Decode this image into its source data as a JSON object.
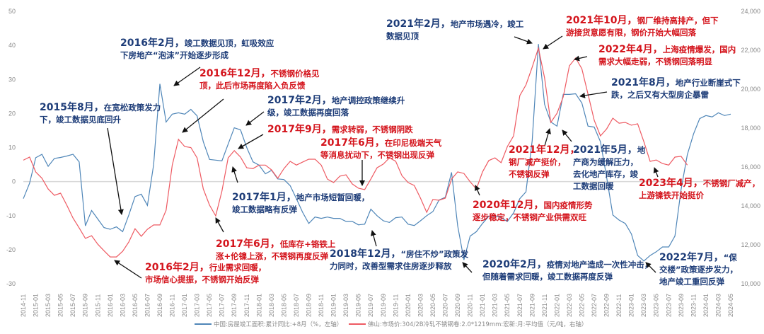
{
  "chart_data": {
    "type": "line",
    "x": [
      "2014-11",
      "2014-12",
      "2015-01",
      "2015-02",
      "2015-03",
      "2015-04",
      "2015-05",
      "2015-06",
      "2015-07",
      "2015-08",
      "2015-09",
      "2015-10",
      "2015-11",
      "2015-12",
      "2016-01",
      "2016-02",
      "2016-03",
      "2016-04",
      "2016-05",
      "2016-06",
      "2016-07",
      "2016-08",
      "2016-09",
      "2016-10",
      "2016-11",
      "2016-12",
      "2017-01",
      "2017-02",
      "2017-03",
      "2017-04",
      "2017-05",
      "2017-06",
      "2017-07",
      "2017-08",
      "2017-09",
      "2017-10",
      "2017-11",
      "2017-12",
      "2018-01",
      "2018-02",
      "2018-03",
      "2018-04",
      "2018-05",
      "2018-06",
      "2018-07",
      "2018-08",
      "2018-09",
      "2018-10",
      "2018-11",
      "2018-12",
      "2019-01",
      "2019-02",
      "2019-03",
      "2019-04",
      "2019-05",
      "2019-06",
      "2019-07",
      "2019-08",
      "2019-09",
      "2019-10",
      "2019-11",
      "2019-12",
      "2020-01",
      "2020-02",
      "2020-03",
      "2020-04",
      "2020-05",
      "2020-06",
      "2020-07",
      "2020-08",
      "2020-09",
      "2020-10",
      "2020-11",
      "2020-12",
      "2021-01",
      "2021-02",
      "2021-03",
      "2021-04",
      "2021-05",
      "2021-06",
      "2021-07",
      "2021-08",
      "2021-09",
      "2021-10",
      "2021-11",
      "2021-12",
      "2022-01",
      "2022-02",
      "2022-03",
      "2022-04",
      "2022-05",
      "2022-06",
      "2022-07",
      "2022-08",
      "2022-09",
      "2022-10",
      "2022-11",
      "2022-12",
      "2023-01",
      "2023-02",
      "2023-03",
      "2023-04",
      "2023-05",
      "2023-06",
      "2023-07",
      "2023-08",
      "2023-09",
      "2023-10",
      "2023-11",
      "2023-12",
      "2024-01",
      "2024-02",
      "2024-03",
      "2024-04",
      "2024-05"
    ],
    "left_axis": {
      "ylim": [
        -30,
        50
      ],
      "ticks": [
        "50",
        "40",
        "30",
        "20",
        "10",
        "0",
        "-10",
        "-20",
        "-30"
      ]
    },
    "right_axis": {
      "ylim": [
        10000,
        24000
      ],
      "ticks": [
        "24,000",
        "22,000",
        "20,000",
        "18,000",
        "16,000",
        "14,000",
        "12,000",
        "10,000"
      ]
    },
    "grid": false,
    "legend_position": "bottom",
    "series": [
      {
        "name": "中国:房屋竣工面积:累计同比:+8月（%，左轴）",
        "axis": "left",
        "color": "#4f86b8",
        "values": [
          -5,
          -0.5,
          7,
          8,
          4.5,
          6.8,
          7.1,
          7.5,
          8,
          5.8,
          -13,
          -8.5,
          -11,
          -13.5,
          -14,
          -13.3,
          -14.7,
          -9.8,
          -4.4,
          -3.7,
          -7,
          5,
          28.7,
          17.5,
          19.8,
          20.2,
          19.8,
          21.2,
          19.3,
          11.7,
          6.5,
          6.3,
          6.1,
          11,
          15.8,
          15.2,
          10,
          5.8,
          4.8,
          2.3,
          3.3,
          0.8,
          0.6,
          -1.2,
          -5,
          -9,
          -12.3,
          -10.4,
          -10.8,
          -10.4,
          -10.8,
          -10.8,
          -11.7,
          -11.7,
          -12.7,
          -12.5,
          -8.1,
          -10,
          -11.5,
          -12,
          -10.6,
          -10.4,
          -12.5,
          -12.9,
          -11.5,
          -10,
          -8.8,
          -5.4,
          -4.6,
          2.7,
          -13,
          -23,
          -16,
          -14.7,
          -12.3,
          -10.2,
          -10,
          -10.6,
          -11.7,
          -9.2,
          -5,
          -3,
          12,
          40.4,
          22.7,
          17.5,
          16.3,
          25.6,
          25.6,
          25.8,
          23.1,
          16.3,
          16,
          11.7,
          1.2,
          -9.8,
          -11.3,
          -12.3,
          -15.4,
          -21.7,
          -23.3,
          -21.7,
          -20.6,
          -19.2,
          -19.2,
          -16,
          -2.3,
          7.9,
          14,
          18.5,
          19.4,
          19,
          20.2,
          19.4,
          19.8
        ]
      },
      {
        "name": "佛山:市场价:304/2B冷轧不锈钢卷:2.0*1219mm:宏新:月:平均值（元/吨，右轴）",
        "axis": "right",
        "color": "#ee5a62",
        "values": [
          16350,
          16510,
          15745,
          15420,
          14870,
          14545,
          14655,
          14040,
          13380,
          12870,
          12330,
          12470,
          12030,
          11700,
          11380,
          11380,
          11670,
          12150,
          12830,
          12440,
          12800,
          13020,
          13020,
          13780,
          16100,
          17420,
          17050,
          17000,
          16470,
          14870,
          14040,
          13490,
          14760,
          16470,
          16840,
          16510,
          15960,
          15920,
          16100,
          16100,
          15850,
          15420,
          15920,
          16290,
          16100,
          16250,
          16400,
          16400,
          16100,
          15380,
          15200,
          15530,
          15600,
          15130,
          14910,
          14840,
          15380,
          15960,
          16150,
          16470,
          16300,
          15560,
          15200,
          15050,
          14400,
          13670,
          14330,
          14290,
          14400,
          15380,
          15750,
          15670,
          15240,
          14870,
          15750,
          16330,
          16470,
          16220,
          17050,
          17600,
          19670,
          20220,
          21130,
          22110,
          20580,
          18290,
          18760,
          19600,
          21200,
          21600,
          21050,
          19750,
          18400,
          17600,
          17960,
          18510,
          18250,
          18290,
          18150,
          18220,
          17300,
          16290,
          16360,
          16180,
          16100,
          16510,
          16550,
          16100,
          null,
          null,
          null,
          null,
          null,
          null,
          null
        ]
      }
    ],
    "annotations": [
      {
        "color": "blue",
        "date": "2016年2月，",
        "lines": [
          "竣工数据见顶，虹吸效应",
          "下房地产“泡沫”开始逐步形成"
        ]
      },
      {
        "color": "red",
        "date": "2016年12月，",
        "lines": [
          "不锈钢价格见",
          "顶，此后市场再度陷入负反馈"
        ]
      },
      {
        "color": "blue",
        "date": "2017年2月，",
        "lines": [
          "地产调控政策继续升",
          "级，竣工数据再度回落"
        ]
      },
      {
        "color": "blue",
        "date": "2015年8月，",
        "lines": [
          "在宽松政策发力",
          "下，竣工数据见底回升"
        ]
      },
      {
        "color": "red",
        "date": "2017年9月，",
        "lines": [
          "需求转弱，不锈钢阴跌"
        ]
      },
      {
        "color": "red",
        "date": "2017年6月，",
        "lines": [
          "在印尼极端天气",
          "等消息扰动下，不锈钢出现反弹"
        ]
      },
      {
        "color": "blue",
        "date": "2017年1月，",
        "lines": [
          "地产市场短暂回暖，",
          "竣工数据略有反弹"
        ]
      },
      {
        "color": "red",
        "date": "2017年6月，",
        "lines": [
          "低库存+铬铁上",
          "涨+伦镍上涨，不锈钢再度反弹"
        ]
      },
      {
        "color": "blue",
        "date": "2018年12月，",
        "lines": [
          "“房住不炒”政策发",
          "力同时，改善型需求住房逐步释放"
        ]
      },
      {
        "color": "red",
        "date": "2016年2月，",
        "lines": [
          "行业需求回暖，",
          "市场信心提振，不锈钢开始反弹"
        ]
      },
      {
        "color": "blue",
        "date": "2021年2月，",
        "lines": [
          "地产市场遇冷，竣工",
          "数据见顶"
        ]
      },
      {
        "color": "red",
        "date": "2021年10月，",
        "lines": [
          "钢厂维持高排产，但下",
          "游接货意愿有限，钢价开始大幅回落"
        ]
      },
      {
        "color": "red",
        "date": "2022年4月，",
        "lines": [
          "上海疫情爆发，国内",
          "需求大幅走弱，不锈钢回落明显"
        ]
      },
      {
        "color": "blue",
        "date": "2021年8月，",
        "lines": [
          "地产行业断崖式下",
          "跌，之后又有大型房企暴雷"
        ]
      },
      {
        "color": "red",
        "date": "2021年12月，",
        "lines": [
          "",
          "钢厂减产挺价，",
          "不锈钢反弹"
        ]
      },
      {
        "color": "blue",
        "date": "2021年5月，",
        "lines": [
          "地",
          "产商为缓解压力，",
          "去化地产库存，竣",
          "工数据回暖"
        ]
      },
      {
        "color": "red",
        "date": "2023年4月，",
        "lines": [
          "不锈钢厂减产，",
          "上游镍铁开始挺价"
        ]
      },
      {
        "color": "red",
        "date": "2020年12月，",
        "lines": [
          "国内疫情形势",
          "逐步稳定，不锈钢产业供需双旺"
        ]
      },
      {
        "color": "blue",
        "date": "2020年2月，",
        "lines": [
          "疫情对地产造成一次性冲击，",
          "但随着需求回暖，竣工数据再度反弹"
        ]
      },
      {
        "color": "blue",
        "date": "2022年7月，",
        "lines": [
          "“保",
          "交楼”政策逐步发力，",
          "地产竣工重回反弹"
        ]
      }
    ]
  }
}
